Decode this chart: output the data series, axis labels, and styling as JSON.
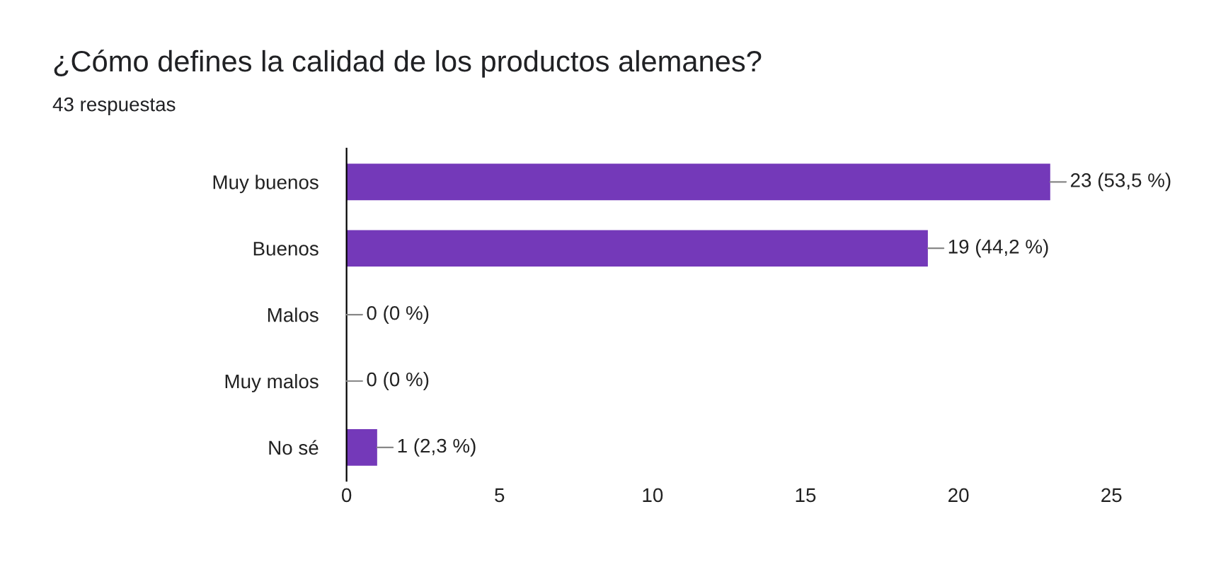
{
  "chart_data": {
    "type": "bar",
    "orientation": "horizontal",
    "title": "¿Cómo defines la calidad de los productos alemanes?",
    "subtitle": "43 respuestas",
    "categories": [
      "Muy buenos",
      "Buenos",
      "Malos",
      "Muy malos",
      "No sé"
    ],
    "values": [
      23,
      19,
      0,
      0,
      1
    ],
    "value_labels": [
      "23 (53,5 %)",
      "19 (44,2 %)",
      "0 (0 %)",
      "0 (0 %)",
      "1 (2,3 %)"
    ],
    "color": "#7439b9",
    "xlim": [
      0,
      25
    ],
    "xticks": [
      0,
      5,
      10,
      15,
      20,
      25
    ],
    "grid": false,
    "legend": false
  }
}
